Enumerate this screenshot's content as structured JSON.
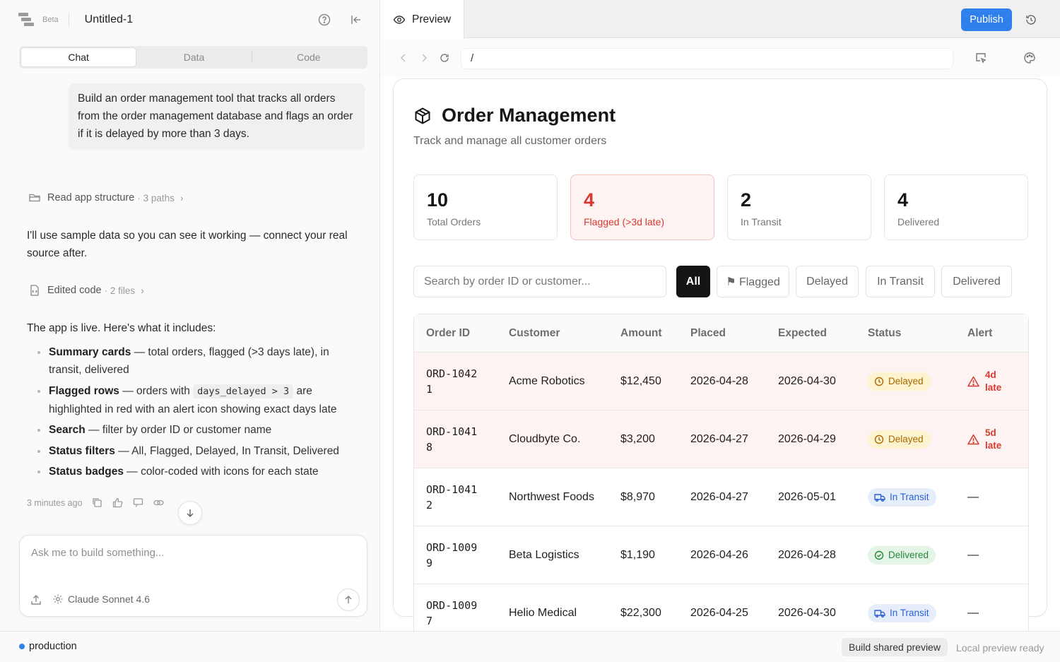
{
  "app": {
    "badge": "Beta",
    "document_title": "Untitled-1"
  },
  "tabs": [
    {
      "label": "Chat",
      "active": true
    },
    {
      "label": "Data",
      "active": false
    },
    {
      "label": "Code",
      "active": false
    }
  ],
  "chat": {
    "user_message": "Build an order management tool that tracks all orders from the order management database and flags an order if it is delayed by more than 3 days.",
    "step1": {
      "label": "Read app structure",
      "meta": "· 3 paths"
    },
    "message1": "I'll use sample data so you can see it working — connect your real source after.",
    "step2": {
      "label": "Edited code",
      "meta": "· 2 files"
    },
    "message2_intro": "The app is live. Here's what it includes:",
    "bullets": [
      {
        "title": "Summary cards",
        "text": " — total orders, flagged (>3 days late), in transit, delivered"
      },
      {
        "title": "Flagged rows",
        "text_before": " — orders with ",
        "code": "days_delayed > 3",
        "text": " are highlighted in red with an alert icon showing exact days late"
      },
      {
        "title": "Search",
        "text": " — filter by order ID or customer name"
      },
      {
        "title": "Status filters",
        "text": " — All, Flagged, Delayed, In Transit, Delivered"
      },
      {
        "title": "Status badges",
        "text": " — color-coded with icons for each state"
      }
    ],
    "timestamp": "3 minutes ago",
    "composer_placeholder": "Ask me to build something...",
    "model": "Claude Sonnet 4.6"
  },
  "preview": {
    "tab_label": "Preview",
    "publish_label": "Publish",
    "url": "/"
  },
  "orders_app": {
    "title": "Order Management",
    "subtitle": "Track and manage all customer orders",
    "cards": [
      {
        "value": "10",
        "label": "Total Orders"
      },
      {
        "value": "4",
        "label": "Flagged (>3d late)"
      },
      {
        "value": "2",
        "label": "In Transit"
      },
      {
        "value": "4",
        "label": "Delivered"
      }
    ],
    "search_placeholder": "Search by order ID or customer...",
    "filters": [
      "All",
      "⚑ Flagged",
      "Delayed",
      "In Transit",
      "Delivered"
    ],
    "columns": [
      "Order ID",
      "Customer",
      "Amount",
      "Placed",
      "Expected",
      "Status",
      "Alert"
    ],
    "rows": [
      {
        "id": "ORD-10421",
        "customer": "Acme Robotics",
        "amount": "$12,450",
        "placed": "2026-04-28",
        "expected": "2026-04-30",
        "status": "Delayed",
        "alert_days": "4d",
        "alert_word": "late"
      },
      {
        "id": "ORD-10418",
        "customer": "Cloudbyte Co.",
        "amount": "$3,200",
        "placed": "2026-04-27",
        "expected": "2026-04-29",
        "status": "Delayed",
        "alert_days": "5d",
        "alert_word": "late"
      },
      {
        "id": "ORD-10412",
        "customer": "Northwest Foods",
        "amount": "$8,970",
        "placed": "2026-04-27",
        "expected": "2026-05-01",
        "status": "In Transit",
        "alert": "—"
      },
      {
        "id": "ORD-10099",
        "customer": "Beta Logistics",
        "amount": "$1,190",
        "placed": "2026-04-26",
        "expected": "2026-04-28",
        "status": "Delivered",
        "alert": "—"
      },
      {
        "id": "ORD-10097",
        "customer": "Helio Medical",
        "amount": "$22,300",
        "placed": "2026-04-25",
        "expected": "2026-04-30",
        "status": "In Transit",
        "alert": "—"
      }
    ]
  },
  "footer": {
    "environment": "production",
    "build_button": "Build shared preview",
    "status": "Local preview ready"
  },
  "colors": {
    "accent": "#2f80ed",
    "flag_red": "#d93a2f",
    "delayed_amber": "#a86a00",
    "transit_blue": "#2a5fd3",
    "delivered_green": "#24873a"
  }
}
